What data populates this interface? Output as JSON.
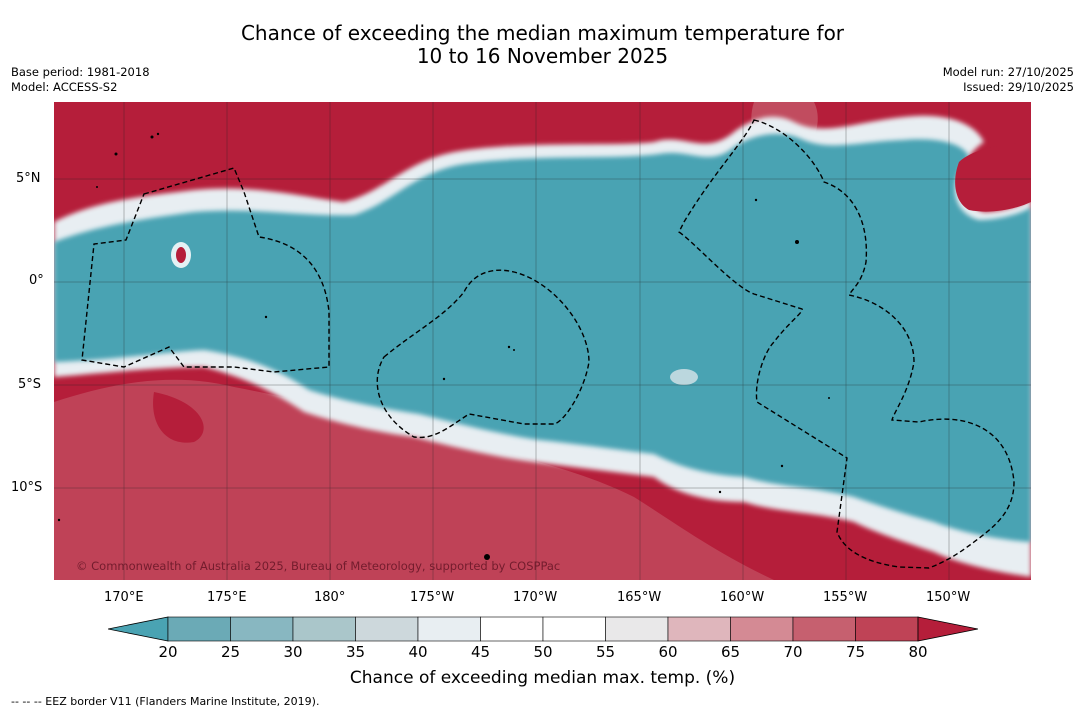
{
  "title": {
    "line1": "Chance of exceeding the median maximum temperature for",
    "line2": "10 to 16 November 2025"
  },
  "meta_left": {
    "base_period": "Base period: 1981-2018",
    "model": "Model: ACCESS-S2"
  },
  "meta_right": {
    "model_run": "Model run: 27/10/2025",
    "issued": "Issued: 29/10/2025"
  },
  "map": {
    "copyright": "© Commonwealth of Australia 2025, Bureau of Meteorology, supported by COSPPac",
    "lat_labels": [
      "5°N",
      "0°",
      "5°S",
      "10°S"
    ],
    "lon_labels": [
      "170°E",
      "175°E",
      "180°",
      "175°W",
      "170°W",
      "165°W",
      "160°W",
      "155°W",
      "150°W"
    ],
    "colors": {
      "below": "#4aa3b3",
      "neutral": "#ffffff",
      "above": "#b51e3a"
    }
  },
  "colorbar": {
    "title": "Chance of exceeding median max. temp. (%)",
    "tick_labels": [
      "20",
      "25",
      "30",
      "35",
      "40",
      "45",
      "50",
      "55",
      "60",
      "65",
      "70",
      "75",
      "80"
    ],
    "colors": [
      "#4aa3b3",
      "#6baab6",
      "#88b7c1",
      "#aac6ca",
      "#cdd8dc",
      "#e8eef2",
      "#ffffff",
      "#ffffff",
      "#e9e8e9",
      "#dfb6bc",
      "#d48a94",
      "#c6606f",
      "#bf4356",
      "#b51e3a"
    ]
  },
  "footnote": "--  --  -- EEZ border V11 (Flanders Marine Institute, 2019)."
}
